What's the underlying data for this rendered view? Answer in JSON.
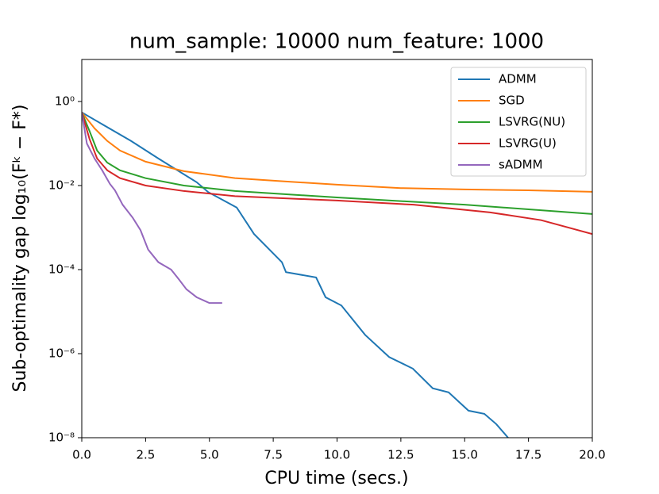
{
  "chart_data": {
    "type": "line",
    "title": "num_sample: 10000 num_feature: 1000",
    "xlabel": "CPU time (secs.)",
    "ylabel": "Sub-optimality gap log₁₀(Fᵏ − F*)",
    "log_y": true,
    "grid": false,
    "legend": "upper right",
    "xlim": [
      0,
      20
    ],
    "ylim": [
      1e-08,
      10
    ],
    "xticks": [
      {
        "value": 0,
        "label": "0.0"
      },
      2.5,
      {
        "value": 5,
        "label": "5.0"
      },
      7.5,
      {
        "value": 10,
        "label": "10.0"
      },
      12.5,
      {
        "value": 15,
        "label": "15.0"
      },
      17.5,
      {
        "value": 20,
        "label": "20.0"
      }
    ],
    "yticks": [
      {
        "value": 1e-08,
        "label": "10⁻⁸"
      },
      {
        "value": 1e-06,
        "label": "10⁻⁶"
      },
      {
        "value": 0.0001,
        "label": "10⁻⁴"
      },
      {
        "value": 0.01,
        "label": "10⁻²"
      },
      {
        "value": 1,
        "label": "10⁰"
      }
    ],
    "series": [
      {
        "name": "ADMM",
        "color": "#1f77b4",
        "x": [
          0,
          1.93,
          3.0,
          4.5,
          4.95,
          6.07,
          6.75,
          7.84,
          8.0,
          9.18,
          9.55,
          10.17,
          11.1,
          12.04,
          12.97,
          13.75,
          14.37,
          15.15,
          15.77,
          16.24,
          16.7
        ],
        "values": [
          0.55,
          0.115,
          0.044,
          0.012,
          0.007,
          0.003,
          0.0007,
          0.00015,
          8.7e-05,
          6.5e-05,
          2.2e-05,
          1.4e-05,
          2.8e-06,
          8.3e-07,
          4.4e-07,
          1.5e-07,
          1.2e-07,
          4.4e-08,
          3.7e-08,
          2.1e-08,
          1e-08
        ]
      },
      {
        "name": "SGD",
        "color": "#ff7f0e",
        "x": [
          0,
          0.5,
          1,
          1.5,
          2.5,
          4,
          6,
          8,
          10,
          12.5,
          15,
          17.5,
          20
        ],
        "values": [
          0.55,
          0.23,
          0.115,
          0.068,
          0.037,
          0.022,
          0.015,
          0.0125,
          0.0105,
          0.0087,
          0.0081,
          0.0077,
          0.0071
        ]
      },
      {
        "name": "LSVRG(NU)",
        "color": "#2ca02c",
        "x": [
          0,
          0.3,
          0.6,
          1,
          1.5,
          2.5,
          4,
          6,
          10,
          15,
          20
        ],
        "values": [
          0.55,
          0.2,
          0.068,
          0.035,
          0.023,
          0.015,
          0.01,
          0.0074,
          0.0052,
          0.0035,
          0.0021
        ]
      },
      {
        "name": "LSVRG(U)",
        "color": "#d62728",
        "x": [
          0,
          0.3,
          0.6,
          1,
          1.5,
          2.5,
          4,
          6,
          10,
          13,
          16,
          18,
          20
        ],
        "values": [
          0.55,
          0.13,
          0.044,
          0.023,
          0.015,
          0.01,
          0.0074,
          0.0056,
          0.0044,
          0.0035,
          0.0023,
          0.0015,
          0.0007
        ]
      },
      {
        "name": "sADMM",
        "color": "#9467bd",
        "x": [
          0,
          0.2,
          0.5,
          0.8,
          1.1,
          1.3,
          1.6,
          2,
          2.3,
          2.6,
          3,
          3.5,
          3.8,
          4.1,
          4.5,
          5,
          5.5
        ],
        "values": [
          0.55,
          0.1,
          0.044,
          0.023,
          0.011,
          0.0077,
          0.0035,
          0.0017,
          0.00087,
          0.0003,
          0.00015,
          0.0001,
          5.9e-05,
          3.4e-05,
          2.2e-05,
          1.6e-05,
          1.6e-05
        ]
      }
    ]
  }
}
